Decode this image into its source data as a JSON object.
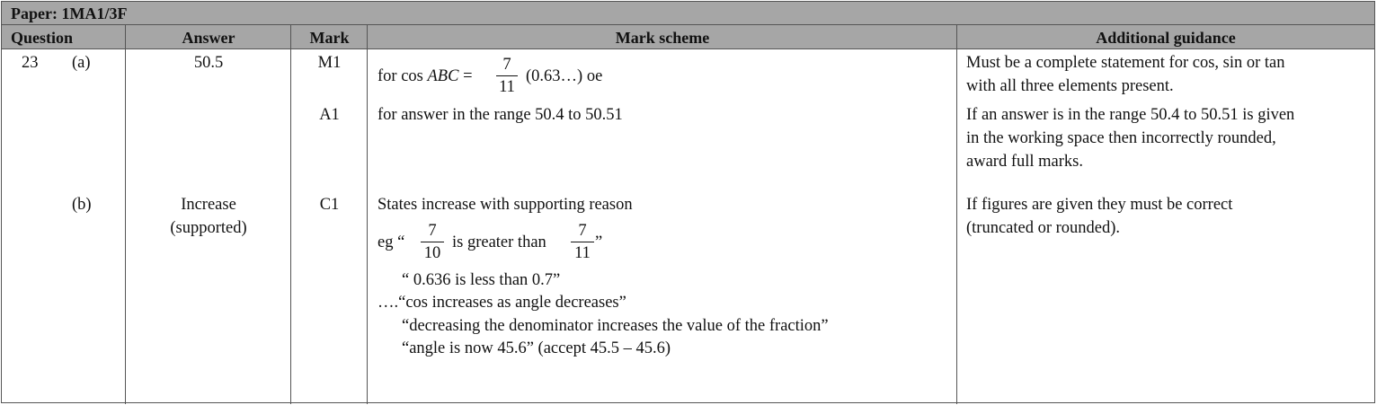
{
  "paper_title": "Paper: 1MA1/3F",
  "headers": {
    "question": "Question",
    "answer": "Answer",
    "mark": "Mark",
    "mark_scheme": "Mark scheme",
    "guidance": "Additional guidance"
  },
  "q23": {
    "number": "23",
    "part_a": {
      "label": "(a)",
      "answer": "50.5",
      "mark1": "M1",
      "scheme1_prefix": "for cos ",
      "scheme1_var": "ABC",
      "scheme1_eq": " =",
      "scheme1_num": "7",
      "scheme1_den": "11",
      "scheme1_suffix": "(0.63…) oe",
      "guidance1_line1": "Must be a complete statement for cos, sin or tan",
      "guidance1_line2": "with all three elements present.",
      "mark2": "A1",
      "scheme2": "for answer in the range 50.4 to 50.51",
      "guidance2_line1": "If an answer is in the range 50.4 to 50.51 is given",
      "guidance2_line2": "in the working space then incorrectly rounded,",
      "guidance2_line3": "award full marks."
    },
    "part_b": {
      "label": "(b)",
      "answer_line1": "Increase",
      "answer_line2": "(supported)",
      "mark": "C1",
      "scheme_line1": "States increase with supporting reason",
      "eg_prefix": "eg  “",
      "eg_num1": "7",
      "eg_den1": "10",
      "eg_middle": "is greater than",
      "eg_num2": "7",
      "eg_den2": "11",
      "eg_close": "”",
      "scheme_line3": "“ 0.636 is less than 0.7”",
      "scheme_line4": "….“cos increases as angle decreases”",
      "scheme_line5": "“decreasing the denominator increases the value of the fraction”",
      "scheme_line6": "“angle is now 45.6” (accept 45.5 – 45.6)",
      "guidance_line1": "If figures are given they must be correct",
      "guidance_line2": "(truncated or rounded)."
    }
  }
}
